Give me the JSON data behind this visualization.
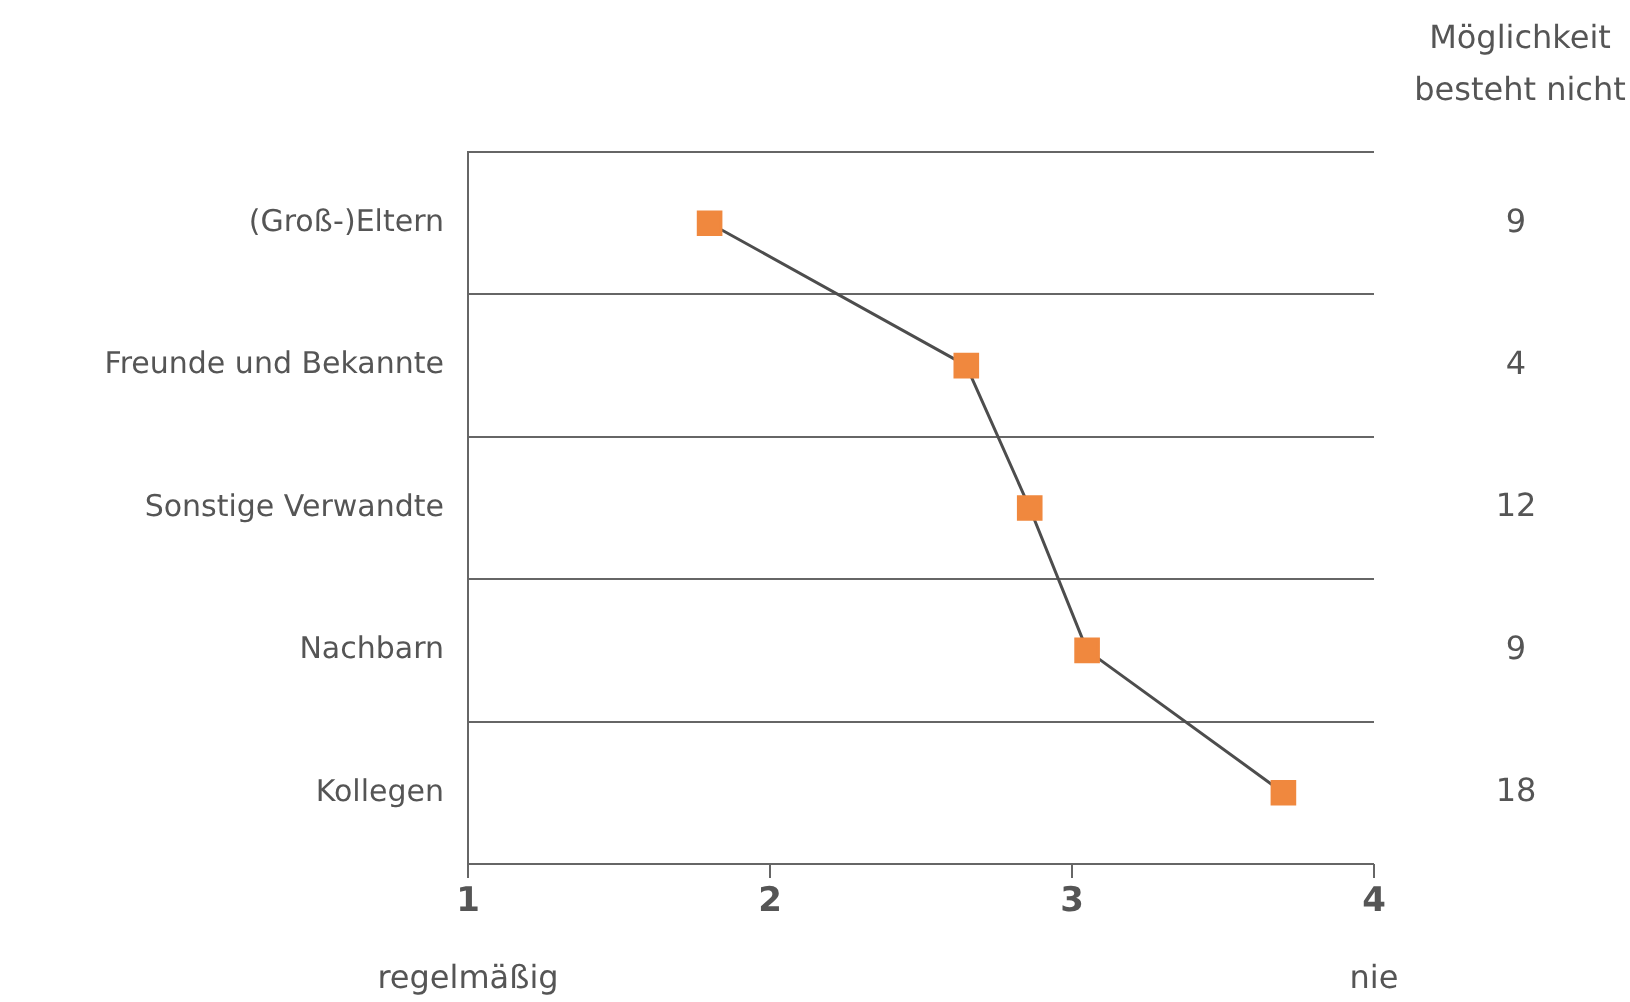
{
  "chart_data": {
    "type": "line",
    "orientation": "horizontal",
    "categories": [
      "(Groß-)Eltern",
      "Freunde und Bekannte",
      "Sonstige Verwandte",
      "Nachbarn",
      "Kollegen"
    ],
    "series": [
      {
        "color": "#f0883e",
        "values": [
          1.8,
          2.65,
          2.86,
          3.05,
          3.7
        ]
      }
    ],
    "xlim": [
      1,
      4
    ],
    "xticks": [
      1,
      2,
      3,
      4
    ],
    "grid": "y",
    "legend": false,
    "marker": "square",
    "line_style": "solid",
    "annotations": [
      "Möglichkeit besteht nicht",
      "9",
      "4",
      "12",
      "9",
      "18",
      "regelmäßig",
      "nie"
    ]
  }
}
